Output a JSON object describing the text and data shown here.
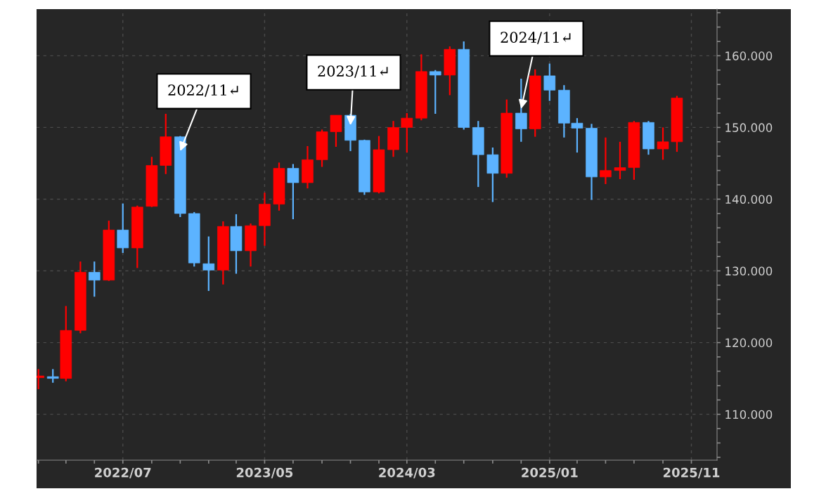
{
  "chart_data": {
    "type": "candlestick",
    "x": [
      "2022-01",
      "2022-02",
      "2022-03",
      "2022-04",
      "2022-05",
      "2022-06",
      "2022-07",
      "2022-08",
      "2022-09",
      "2022-10",
      "2022-11",
      "2022-12",
      "2023-01",
      "2023-02",
      "2023-03",
      "2023-04",
      "2023-05",
      "2023-06",
      "2023-07",
      "2023-08",
      "2023-09",
      "2023-10",
      "2023-11",
      "2023-12",
      "2024-01",
      "2024-02",
      "2024-03",
      "2024-04",
      "2024-05",
      "2024-06",
      "2024-07",
      "2024-08",
      "2024-09",
      "2024-10",
      "2024-11",
      "2024-12",
      "2025-01",
      "2025-02",
      "2025-03",
      "2025-04",
      "2025-05",
      "2025-06",
      "2025-07",
      "2025-08",
      "2025-09",
      "2025-10"
    ],
    "ohlc": [
      [
        115.1,
        116.3,
        113.5,
        115.2
      ],
      [
        115.1,
        116.3,
        114.4,
        115.0
      ],
      [
        115.0,
        125.1,
        114.6,
        121.7
      ],
      [
        121.7,
        131.3,
        121.3,
        129.8
      ],
      [
        129.8,
        131.3,
        126.4,
        128.7
      ],
      [
        128.7,
        137.0,
        128.6,
        135.7
      ],
      [
        135.7,
        139.4,
        132.5,
        133.2
      ],
      [
        133.2,
        139.1,
        130.4,
        138.9
      ],
      [
        139.0,
        145.9,
        138.9,
        144.7
      ],
      [
        144.7,
        151.9,
        143.5,
        148.7
      ],
      [
        148.7,
        148.8,
        137.5,
        138.0
      ],
      [
        138.0,
        138.2,
        130.6,
        131.1
      ],
      [
        131.0,
        134.8,
        127.2,
        130.1
      ],
      [
        130.1,
        136.9,
        128.1,
        136.2
      ],
      [
        136.2,
        137.9,
        129.6,
        132.8
      ],
      [
        132.8,
        136.6,
        130.6,
        136.3
      ],
      [
        136.3,
        140.9,
        133.5,
        139.3
      ],
      [
        139.3,
        145.1,
        138.4,
        144.3
      ],
      [
        144.3,
        144.9,
        137.2,
        142.3
      ],
      [
        142.3,
        147.4,
        141.5,
        145.5
      ],
      [
        145.5,
        149.7,
        144.5,
        149.4
      ],
      [
        149.4,
        151.7,
        147.3,
        151.7
      ],
      [
        151.7,
        151.9,
        146.7,
        148.2
      ],
      [
        148.2,
        148.3,
        140.6,
        141.0
      ],
      [
        141.0,
        148.8,
        140.8,
        146.9
      ],
      [
        146.9,
        150.9,
        145.9,
        150.0
      ],
      [
        150.0,
        152.0,
        146.5,
        151.3
      ],
      [
        151.3,
        160.2,
        151.0,
        157.8
      ],
      [
        157.8,
        158.0,
        151.9,
        157.3
      ],
      [
        157.3,
        161.3,
        154.5,
        160.9
      ],
      [
        160.9,
        162.0,
        149.7,
        150.0
      ],
      [
        150.0,
        150.9,
        141.7,
        146.2
      ],
      [
        146.2,
        147.2,
        139.6,
        143.6
      ],
      [
        143.6,
        153.9,
        143.0,
        152.0
      ],
      [
        152.0,
        156.8,
        148.0,
        149.8
      ],
      [
        149.8,
        158.1,
        148.7,
        157.2
      ],
      [
        157.2,
        158.9,
        153.7,
        155.2
      ],
      [
        155.2,
        155.9,
        148.6,
        150.6
      ],
      [
        150.6,
        151.3,
        146.5,
        149.9
      ],
      [
        149.9,
        150.5,
        139.9,
        143.1
      ],
      [
        143.1,
        148.6,
        142.1,
        144.0
      ],
      [
        144.0,
        148.0,
        142.8,
        144.4
      ],
      [
        144.4,
        150.9,
        142.7,
        150.7
      ],
      [
        150.7,
        150.9,
        146.2,
        147.0
      ],
      [
        147.0,
        150.0,
        145.5,
        148.0
      ],
      [
        148.0,
        154.4,
        146.6,
        154.1
      ]
    ],
    "colors": [
      "#ff0000",
      "#5cb3ff",
      "#ff0000",
      "#ff0000",
      "#5cb3ff",
      "#ff0000",
      "#5cb3ff",
      "#ff0000",
      "#ff0000",
      "#ff0000",
      "#5cb3ff",
      "#5cb3ff",
      "#5cb3ff",
      "#ff0000",
      "#5cb3ff",
      "#ff0000",
      "#ff0000",
      "#ff0000",
      "#5cb3ff",
      "#ff0000",
      "#ff0000",
      "#ff0000",
      "#5cb3ff",
      "#5cb3ff",
      "#ff0000",
      "#ff0000",
      "#ff0000",
      "#ff0000",
      "#5cb3ff",
      "#ff0000",
      "#5cb3ff",
      "#5cb3ff",
      "#5cb3ff",
      "#ff0000",
      "#5cb3ff",
      "#ff0000",
      "#5cb3ff",
      "#5cb3ff",
      "#5cb3ff",
      "#5cb3ff",
      "#ff0000",
      "#ff0000",
      "#ff0000",
      "#5cb3ff",
      "#ff0000",
      "#ff0000"
    ],
    "xlim": [
      "2021-12-28",
      "2025-12-26"
    ],
    "xticks": [
      {
        "value": "2022-01",
        "label": null
      },
      {
        "value": "2022-03",
        "label": null
      },
      {
        "value": "2022-05",
        "label": null
      },
      {
        "value": "2022-07",
        "label": "2022/07"
      },
      {
        "value": "2022-09",
        "label": null
      },
      {
        "value": "2022-11",
        "label": null
      },
      {
        "value": "2023-01",
        "label": null
      },
      {
        "value": "2023-03",
        "label": null
      },
      {
        "value": "2023-05",
        "label": "2023/05"
      },
      {
        "value": "2023-07",
        "label": null
      },
      {
        "value": "2023-09",
        "label": null
      },
      {
        "value": "2023-11",
        "label": null
      },
      {
        "value": "2024-01",
        "label": null
      },
      {
        "value": "2024-03",
        "label": "2024/03"
      },
      {
        "value": "2024-05",
        "label": null
      },
      {
        "value": "2024-07",
        "label": null
      },
      {
        "value": "2024-09",
        "label": null
      },
      {
        "value": "2024-11",
        "label": null
      },
      {
        "value": "2025-01",
        "label": "2025/01"
      },
      {
        "value": "2025-03",
        "label": null
      },
      {
        "value": "2025-05",
        "label": null
      },
      {
        "value": "2025-07",
        "label": null
      },
      {
        "value": "2025-09",
        "label": null
      },
      {
        "value": "2025-11",
        "label": "2025/11"
      }
    ],
    "ylim": [
      103.6,
      166.5
    ],
    "yticks": [
      {
        "value": 104,
        "label": null
      },
      {
        "value": 106,
        "label": null
      },
      {
        "value": 108,
        "label": null
      },
      {
        "value": 110,
        "label": "110.000"
      },
      {
        "value": 112,
        "label": null
      },
      {
        "value": 114,
        "label": null
      },
      {
        "value": 116,
        "label": null
      },
      {
        "value": 118,
        "label": null
      },
      {
        "value": 120,
        "label": "120.000"
      },
      {
        "value": 122,
        "label": null
      },
      {
        "value": 124,
        "label": null
      },
      {
        "value": 126,
        "label": null
      },
      {
        "value": 128,
        "label": null
      },
      {
        "value": 130,
        "label": "130.000"
      },
      {
        "value": 132,
        "label": null
      },
      {
        "value": 134,
        "label": null
      },
      {
        "value": 136,
        "label": null
      },
      {
        "value": 138,
        "label": null
      },
      {
        "value": 140,
        "label": "140.000"
      },
      {
        "value": 142,
        "label": null
      },
      {
        "value": 144,
        "label": null
      },
      {
        "value": 146,
        "label": null
      },
      {
        "value": 148,
        "label": null
      },
      {
        "value": 150,
        "label": "150.000"
      },
      {
        "value": 152,
        "label": null
      },
      {
        "value": 154,
        "label": null
      },
      {
        "value": 156,
        "label": null
      },
      {
        "value": 158,
        "label": null
      },
      {
        "value": 160,
        "label": "160.000"
      },
      {
        "value": 162,
        "label": null
      },
      {
        "value": 164,
        "label": null
      },
      {
        "value": 166,
        "label": null
      }
    ],
    "grid": true,
    "annotations": [
      {
        "text": "2022/11↵",
        "x": "2022-11",
        "y": 146.7
      },
      {
        "text": "2023/11↵",
        "x": "2023-11",
        "y": 150.3
      },
      {
        "text": "2024/11↵",
        "x": "2024-11",
        "y": 152.6
      }
    ]
  }
}
